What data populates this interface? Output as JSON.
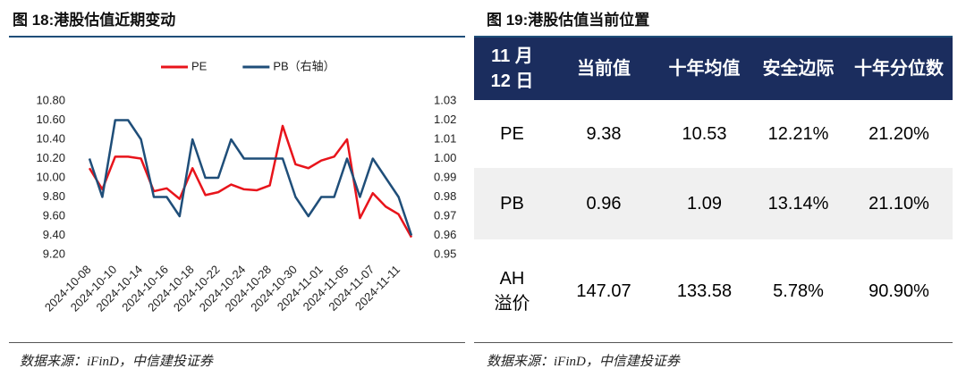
{
  "panels": [
    {
      "title": "图 18:港股估值近期变动",
      "source": "数据来源：iFinD，中信建投证券"
    },
    {
      "title": "图 19:港股估值当前位置",
      "source": "数据来源：iFinD，中信建投证券"
    }
  ],
  "chart_data": {
    "type": "line",
    "categories": [
      "2024-10-08",
      null,
      "2024-10-10",
      null,
      "2024-10-14",
      null,
      "2024-10-16",
      null,
      "2024-10-18",
      null,
      "2024-10-22",
      null,
      "2024-10-24",
      null,
      "2024-10-28",
      null,
      "2024-10-30",
      null,
      "2024-11-01",
      null,
      "2024-11-05",
      null,
      "2024-11-07",
      null,
      "2024-11-11",
      null
    ],
    "series": [
      {
        "name": "PE",
        "color": "#e8141b",
        "values": [
          10.1,
          9.88,
          10.22,
          10.22,
          10.2,
          9.86,
          9.89,
          9.78,
          10.1,
          9.82,
          9.85,
          9.93,
          9.88,
          9.87,
          9.92,
          10.54,
          10.14,
          10.1,
          10.18,
          10.22,
          10.4,
          9.58,
          9.84,
          9.7,
          9.62,
          9.38
        ]
      },
      {
        "name": "PB（右轴）",
        "color": "#1f4e79",
        "axis": "y2",
        "values": [
          1.0,
          0.98,
          1.02,
          1.02,
          1.01,
          0.98,
          0.98,
          0.97,
          1.01,
          0.99,
          0.99,
          1.01,
          1.0,
          1.0,
          1.0,
          1.0,
          0.98,
          0.97,
          0.98,
          0.98,
          1.0,
          0.98,
          1.0,
          0.99,
          0.98,
          0.96
        ]
      }
    ],
    "ylim": [
      9.2,
      10.8
    ],
    "yticks": [
      {
        "value": 9.2,
        "label": "9.20"
      },
      {
        "value": 9.4,
        "label": "9.40"
      },
      {
        "value": 9.6,
        "label": "9.60"
      },
      {
        "value": 9.8,
        "label": "9.80"
      },
      {
        "value": 10,
        "label": "10.00"
      },
      {
        "value": 10.2,
        "label": "10.20"
      },
      {
        "value": 10.4,
        "label": "10.40"
      },
      {
        "value": 10.6,
        "label": "10.60"
      },
      {
        "value": 10.8,
        "label": "10.80"
      }
    ],
    "y2lim": [
      0.95,
      1.03
    ],
    "y2ticks": [
      0.95,
      0.96,
      0.97,
      0.98,
      0.99,
      {
        "value": 1,
        "label": "1.00"
      },
      1.01,
      1.02,
      1.03
    ],
    "legend": "top"
  },
  "table": {
    "header": [
      "11 月 12 日",
      "当前值",
      "十年均值",
      "安全边际",
      "十年分位数"
    ],
    "rows": [
      [
        "PE",
        "9.38",
        "10.53",
        "12.21%",
        "21.20%"
      ],
      [
        "PB",
        "0.96",
        "1.09",
        "13.14%",
        "21.10%"
      ],
      [
        "AH\n溢价",
        "147.07",
        "133.58",
        "5.78%",
        "90.90%"
      ]
    ]
  }
}
